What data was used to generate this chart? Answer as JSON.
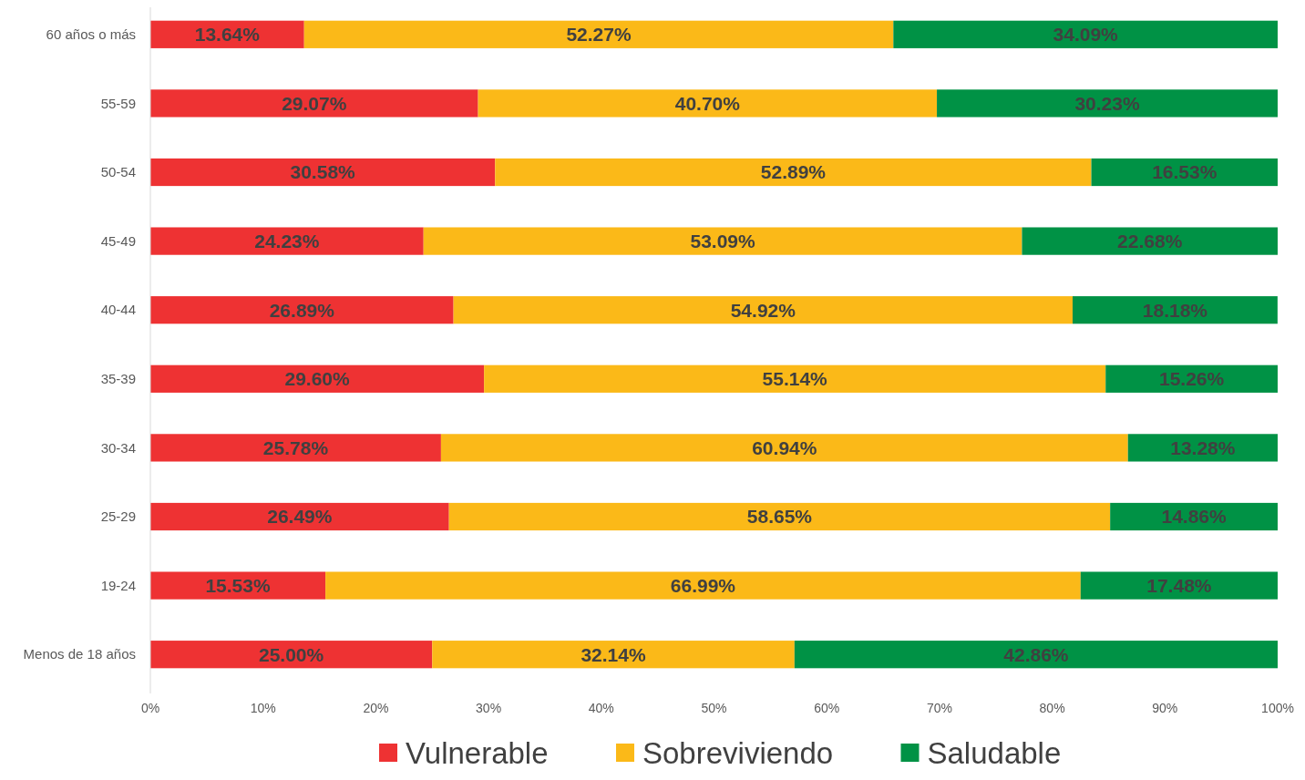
{
  "chart_data": {
    "type": "bar",
    "orientation": "horizontal",
    "stacked": true,
    "categories": [
      "60 años o más",
      "55-59",
      "50-54",
      "45-49",
      "40-44",
      "35-39",
      "30-34",
      "25-29",
      "19-24",
      "Menos de 18 años"
    ],
    "series": [
      {
        "name": "Vulnerable",
        "color": "#ee3233",
        "values": [
          13.64,
          29.07,
          30.58,
          24.23,
          26.89,
          29.6,
          25.78,
          26.49,
          15.53,
          25.0
        ],
        "value_labels": [
          "13.64%",
          "29.07%",
          "30.58%",
          "24.23%",
          "26.89%",
          "29.60%",
          "25.78%",
          "26.49%",
          "15.53%",
          "25.00%"
        ]
      },
      {
        "name": "Sobreviviendo",
        "color": "#fbb918",
        "values": [
          52.27,
          40.7,
          52.89,
          53.09,
          54.92,
          55.14,
          60.94,
          58.65,
          66.99,
          32.14
        ],
        "value_labels": [
          "52.27%",
          "40.70%",
          "52.89%",
          "53.09%",
          "54.92%",
          "55.14%",
          "60.94%",
          "58.65%",
          "66.99%",
          "32.14%"
        ]
      },
      {
        "name": "Saludable",
        "color": "#009245",
        "values": [
          34.09,
          30.23,
          16.53,
          22.68,
          18.18,
          15.26,
          13.28,
          14.86,
          17.48,
          42.86
        ],
        "value_labels": [
          "34.09%",
          "30.23%",
          "16.53%",
          "22.68%",
          "18.18%",
          "15.26%",
          "13.28%",
          "14.86%",
          "17.48%",
          "42.86%"
        ]
      }
    ],
    "xlim": [
      0,
      100
    ],
    "xticks": [
      {
        "value": 0,
        "label": "0%"
      },
      {
        "value": 10,
        "label": "10%"
      },
      {
        "value": 20,
        "label": "20%"
      },
      {
        "value": 30,
        "label": "30%"
      },
      {
        "value": 40,
        "label": "40%"
      },
      {
        "value": 50,
        "label": "50%"
      },
      {
        "value": 60,
        "label": "60%"
      },
      {
        "value": 70,
        "label": "70%"
      },
      {
        "value": 80,
        "label": "80%"
      },
      {
        "value": 90,
        "label": "90%"
      },
      {
        "value": 100,
        "label": "100%"
      }
    ],
    "grid": false,
    "legend": "bottom"
  }
}
